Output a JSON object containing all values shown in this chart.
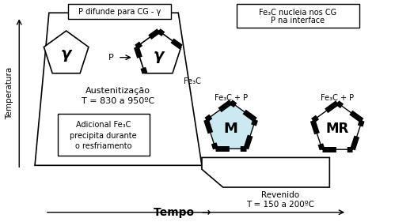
{
  "bg_color": "#ffffff",
  "box1_label": "P difunde para CG - γ",
  "box2_line1": "Fe₃C nucleia nos CG",
  "box2_line2": "P na interface",
  "gamma1_label": "γ",
  "gamma2_label": "γ",
  "fe3c_label": "Fe₃C",
  "aust_line1": "Austenitização",
  "aust_line2": "T = 830 a 950ºC",
  "add_line1": "Adicional Fe₃C",
  "add_line2": "precipita durante",
  "add_line3": "o resfriamento",
  "m_label": "M",
  "mr_label": "MR",
  "fe3c_p1": "Fe₃C + P",
  "fe3c_p2": "Fe₃C + P",
  "rev_line1": "Revenido",
  "rev_line2": "T = 150 a 200ºC",
  "temp_label": "Temperatura",
  "time_label": "Tempo",
  "p_arrow_label": "P"
}
